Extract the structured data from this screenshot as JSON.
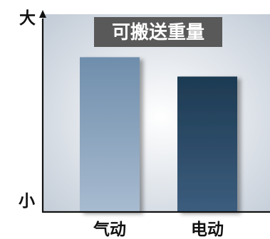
{
  "chart_data": {
    "type": "bar",
    "title": "可搬送重量",
    "categories": [
      "气动",
      "电动"
    ],
    "values": [
      80,
      70
    ],
    "ylim": [
      0,
      100
    ],
    "y_top_label": "大",
    "y_bottom_label": "小",
    "grid": false,
    "colors": {
      "bar_gradients": [
        [
          "#6f8eac",
          "#a8bbd0"
        ],
        [
          "#1d3a52",
          "#3c5d7e"
        ]
      ],
      "title_bg": "#595959",
      "axis": "#111111",
      "background_center": "#ffffff",
      "background_edge": "#c4cdd8"
    }
  }
}
